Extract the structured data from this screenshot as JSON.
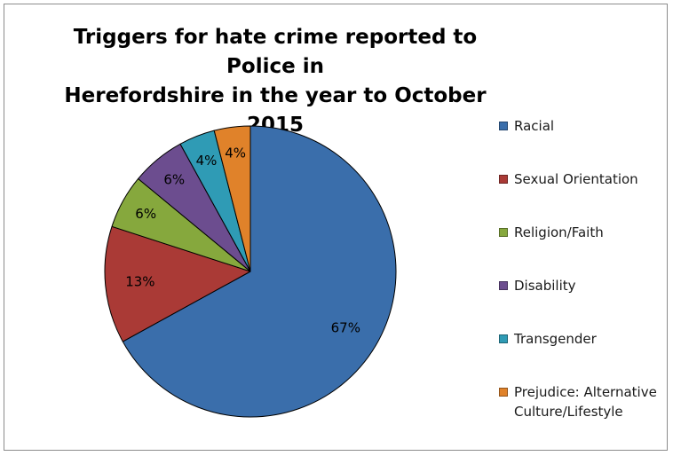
{
  "chart_data": {
    "type": "pie",
    "title_lines": [
      "Triggers for hate crime reported to Police in",
      "Herefordshire in the year to October 2015"
    ],
    "legend_position": "right",
    "slices": [
      {
        "name": "Racial",
        "value": 67,
        "label": "67%",
        "color": "#3a6eab"
      },
      {
        "name": "Sexual Orientation",
        "value": 13,
        "label": "13%",
        "color": "#aa3a36"
      },
      {
        "name": "Religion/Faith",
        "value": 6,
        "label": "6%",
        "color": "#86a83d"
      },
      {
        "name": "Disability",
        "value": 6,
        "label": "6%",
        "color": "#6c4d8f"
      },
      {
        "name": "Transgender",
        "value": 4,
        "label": "4%",
        "color": "#2f9bb5"
      },
      {
        "name": "Prejudice: Alternative Culture/Lifestyle",
        "value": 4,
        "label": "4%",
        "color": "#e0822a"
      }
    ]
  }
}
